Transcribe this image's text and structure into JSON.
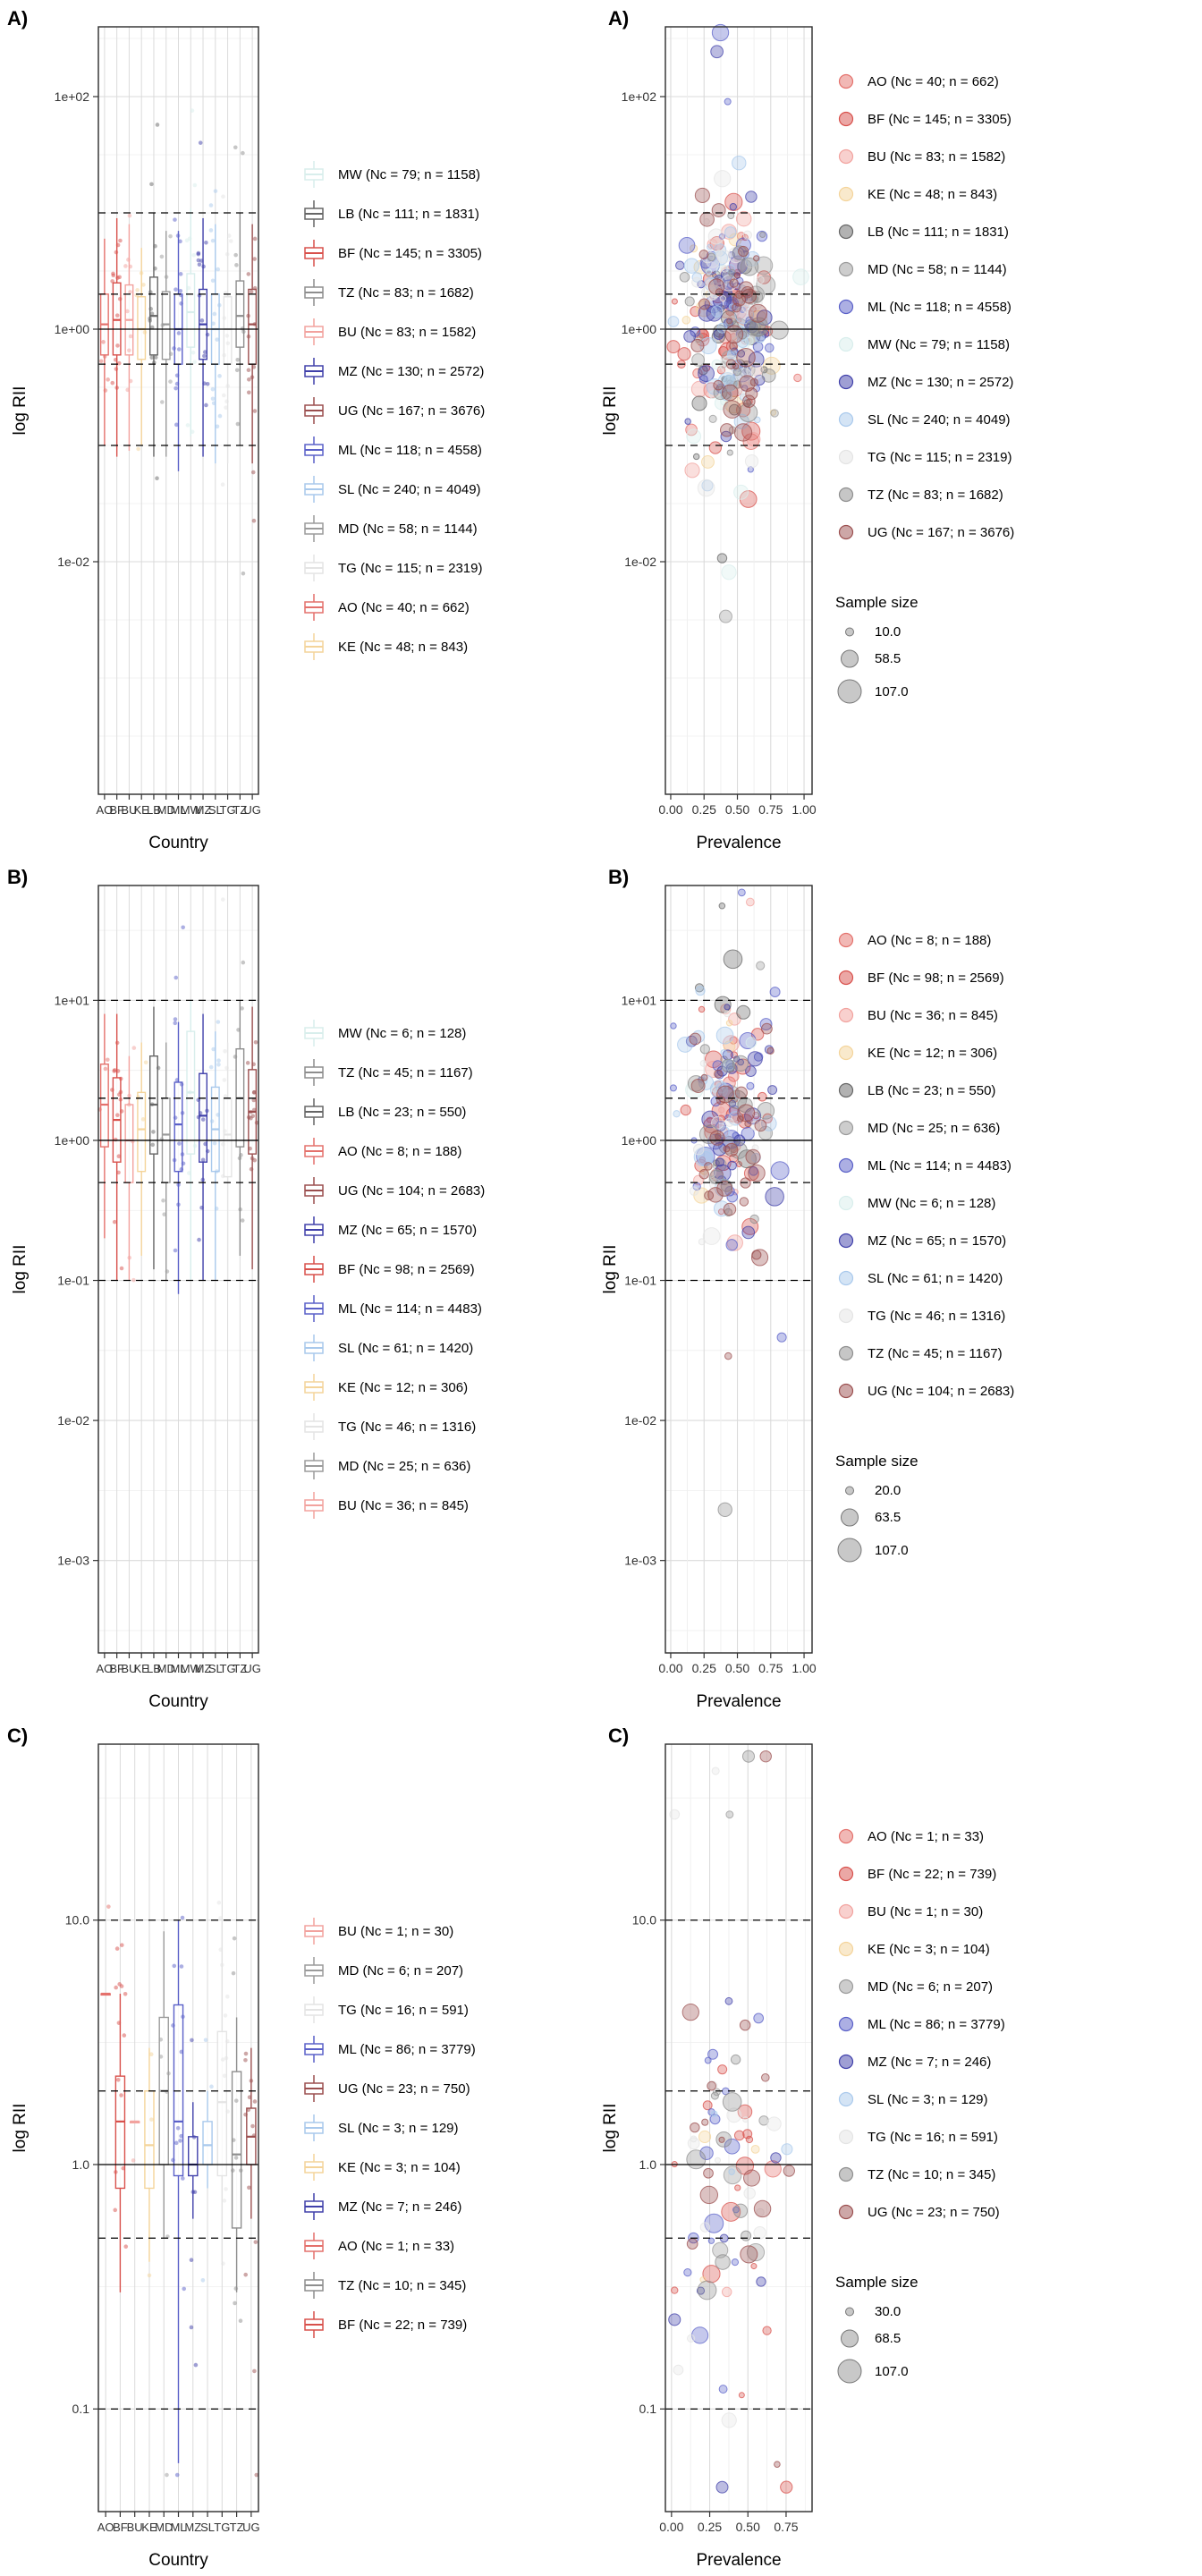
{
  "palette": {
    "AO": "#E4716C",
    "BF": "#D8504B",
    "BU": "#F2A29E",
    "KE": "#F4D49A",
    "LB": "#666666",
    "MD": "#9B9B9B",
    "ML": "#5A60C8",
    "MW": "#D8EEEC",
    "MZ": "#4040AA",
    "SL": "#A9C9EC",
    "TG": "#E4E4E4",
    "TZ": "#8E8E8E",
    "UG": "#9B4F4F"
  },
  "chart_data": [
    {
      "label": "A)",
      "type": "boxplot",
      "ylabel": "log RII",
      "xlabel": "Country",
      "ylim": [
        -4.0,
        2.6
      ],
      "seed": 11,
      "yticks": [
        {
          "v": 2,
          "label": "1e+02"
        },
        {
          "v": 0,
          "label": "1e+00"
        },
        {
          "v": -2,
          "label": "1e-02"
        }
      ],
      "ref": {
        "solid": [
          0
        ],
        "dashed": [
          1,
          0.30103,
          -0.30103,
          -1
        ]
      },
      "x_categories": [
        "AO",
        "BF",
        "BU",
        "KE",
        "LB",
        "MD",
        "ML",
        "MW",
        "MZ",
        "SL",
        "TG",
        "TZ",
        "UG"
      ],
      "legend": [
        {
          "code": "MW",
          "nc": 79,
          "label": "MW (Nc = 79; n = 1158)"
        },
        {
          "code": "LB",
          "nc": 111,
          "label": "LB (Nc = 111; n = 1831)"
        },
        {
          "code": "BF",
          "nc": 145,
          "label": "BF (Nc = 145; n = 3305)"
        },
        {
          "code": "TZ",
          "nc": 83,
          "label": "TZ (Nc = 83; n = 1682)"
        },
        {
          "code": "BU",
          "nc": 83,
          "label": "BU (Nc = 83; n = 1582)"
        },
        {
          "code": "MZ",
          "nc": 130,
          "label": "MZ (Nc = 130; n = 2572)"
        },
        {
          "code": "UG",
          "nc": 167,
          "label": "UG (Nc = 167; n = 3676)"
        },
        {
          "code": "ML",
          "nc": 118,
          "label": "ML (Nc = 118; n = 4558)"
        },
        {
          "code": "SL",
          "nc": 240,
          "label": "SL (Nc = 240; n = 4049)"
        },
        {
          "code": "MD",
          "nc": 58,
          "label": "MD (Nc = 58; n = 1144)"
        },
        {
          "code": "TG",
          "nc": 115,
          "label": "TG (Nc = 115; n = 2319)"
        },
        {
          "code": "AO",
          "nc": 40,
          "label": "AO (Nc = 40; n = 662)"
        },
        {
          "code": "KE",
          "nc": 48,
          "label": "KE (Nc = 48; n = 843)"
        }
      ],
      "boxes": {
        "AO": [
          0.1,
          0.6,
          1.1,
          2.0,
          6.0
        ],
        "BF": [
          0.08,
          0.6,
          1.2,
          2.5,
          9.0
        ],
        "BU": [
          0.09,
          0.6,
          1.2,
          2.4,
          8.0
        ],
        "KE": [
          0.1,
          0.55,
          1.0,
          1.9,
          5.0
        ],
        "LB": [
          0.08,
          0.6,
          1.3,
          2.8,
          10.0
        ],
        "MD": [
          0.08,
          0.55,
          1.1,
          2.1,
          7.0
        ],
        "ML": [
          0.06,
          0.5,
          1.0,
          2.0,
          7.0
        ],
        "MW": [
          0.12,
          0.7,
          1.4,
          3.0,
          11.0
        ],
        "MZ": [
          0.08,
          0.55,
          1.1,
          2.2,
          9.0
        ],
        "SL": [
          0.07,
          0.5,
          1.0,
          2.0,
          8.0
        ],
        "TG": [
          0.07,
          0.5,
          1.0,
          1.9,
          6.0
        ],
        "TZ": [
          0.1,
          0.7,
          1.3,
          2.6,
          10.0
        ],
        "UG": [
          0.07,
          0.5,
          1.1,
          2.2,
          8.0
        ]
      },
      "gen": {
        "jsd": 0.5,
        "jdiv": 8,
        "jmin": 4,
        "jmax": 16
      }
    },
    {
      "label": "A)",
      "type": "bubble",
      "ylabel": "log RII",
      "xlabel": "Prevalence",
      "ylim": [
        -4.0,
        2.6
      ],
      "xlim": [
        -0.04,
        1.06
      ],
      "seed": 22,
      "yticks": [
        {
          "v": 2,
          "label": "1e+02"
        },
        {
          "v": 0,
          "label": "1e+00"
        },
        {
          "v": -2,
          "label": "1e-02"
        }
      ],
      "xticks": [
        {
          "v": 0,
          "label": "0.00"
        },
        {
          "v": 0.25,
          "label": "0.25"
        },
        {
          "v": 0.5,
          "label": "0.50"
        },
        {
          "v": 0.75,
          "label": "0.75"
        },
        {
          "v": 1,
          "label": "1.00"
        }
      ],
      "ref": {
        "solid": [
          0
        ],
        "dashed": [
          1,
          0.30103,
          -0.30103,
          -1
        ]
      },
      "legend": [
        {
          "code": "AO",
          "nc": 40,
          "label": "AO (Nc = 40; n = 662)"
        },
        {
          "code": "BF",
          "nc": 145,
          "label": "BF (Nc = 145; n = 3305)"
        },
        {
          "code": "BU",
          "nc": 83,
          "label": "BU (Nc = 83; n = 1582)"
        },
        {
          "code": "KE",
          "nc": 48,
          "label": "KE (Nc = 48; n = 843)"
        },
        {
          "code": "LB",
          "nc": 111,
          "label": "LB (Nc = 111; n = 1831)"
        },
        {
          "code": "MD",
          "nc": 58,
          "label": "MD (Nc = 58; n = 1144)"
        },
        {
          "code": "ML",
          "nc": 118,
          "label": "ML (Nc = 118; n = 4558)"
        },
        {
          "code": "MW",
          "nc": 79,
          "label": "MW (Nc = 79; n = 1158)"
        },
        {
          "code": "MZ",
          "nc": 130,
          "label": "MZ (Nc = 130; n = 2572)"
        },
        {
          "code": "SL",
          "nc": 240,
          "label": "SL (Nc = 240; n = 4049)"
        },
        {
          "code": "TG",
          "nc": 115,
          "label": "TG (Nc = 115; n = 2319)"
        },
        {
          "code": "TZ",
          "nc": 83,
          "label": "TZ (Nc = 83; n = 1682)"
        },
        {
          "code": "UG",
          "nc": 167,
          "label": "UG (Nc = 167; n = 3676)"
        }
      ],
      "size_legend": {
        "title": "Sample size",
        "values": [
          "10.0",
          "58.5",
          "107.0"
        ]
      },
      "gen": {
        "div": 4,
        "cap": 34,
        "nmin": 5,
        "xm": 0.45,
        "xs": 0.16,
        "ym": 0.05,
        "ys": 0.5
      }
    },
    {
      "label": "B)",
      "type": "boxplot",
      "ylabel": "log RII",
      "xlabel": "Country",
      "ylim": [
        -3.66,
        1.82
      ],
      "seed": 33,
      "yticks": [
        {
          "v": 1,
          "label": "1e+01"
        },
        {
          "v": 0,
          "label": "1e+00"
        },
        {
          "v": -1,
          "label": "1e-01"
        },
        {
          "v": -2,
          "label": "1e-02"
        },
        {
          "v": -3,
          "label": "1e-03"
        }
      ],
      "ref": {
        "solid": [
          0
        ],
        "dashed": [
          1,
          0.30103,
          -0.30103,
          -1
        ]
      },
      "x_categories": [
        "AO",
        "BF",
        "BU",
        "KE",
        "LB",
        "MD",
        "ML",
        "MW",
        "MZ",
        "SL",
        "TG",
        "TZ",
        "UG"
      ],
      "legend": [
        {
          "code": "MW",
          "nc": 6,
          "label": "MW (Nc = 6; n = 128)"
        },
        {
          "code": "TZ",
          "nc": 45,
          "label": "TZ (Nc = 45; n = 1167)"
        },
        {
          "code": "LB",
          "nc": 23,
          "label": "LB (Nc = 23; n = 550)"
        },
        {
          "code": "AO",
          "nc": 8,
          "label": "AO (Nc = 8; n = 188)"
        },
        {
          "code": "UG",
          "nc": 104,
          "label": "UG (Nc = 104; n = 2683)"
        },
        {
          "code": "MZ",
          "nc": 65,
          "label": "MZ (Nc = 65; n = 1570)"
        },
        {
          "code": "BF",
          "nc": 98,
          "label": "BF (Nc = 98; n = 2569)"
        },
        {
          "code": "ML",
          "nc": 114,
          "label": "ML (Nc = 114; n = 4483)"
        },
        {
          "code": "SL",
          "nc": 61,
          "label": "SL (Nc = 61; n = 1420)"
        },
        {
          "code": "KE",
          "nc": 12,
          "label": "KE (Nc = 12; n = 306)"
        },
        {
          "code": "TG",
          "nc": 46,
          "label": "TG (Nc = 46; n = 1316)"
        },
        {
          "code": "MD",
          "nc": 25,
          "label": "MD (Nc = 25; n = 636)"
        },
        {
          "code": "BU",
          "nc": 36,
          "label": "BU (Nc = 36; n = 845)"
        }
      ],
      "boxes": {
        "AO": [
          0.2,
          0.9,
          1.8,
          3.5,
          8.0
        ],
        "BF": [
          0.1,
          0.7,
          1.4,
          2.8,
          8.0
        ],
        "BU": [
          0.1,
          0.5,
          1.0,
          1.8,
          4.0
        ],
        "KE": [
          0.15,
          0.6,
          1.2,
          2.2,
          5.0
        ],
        "LB": [
          0.12,
          0.8,
          1.8,
          4.0,
          9.0
        ],
        "MD": [
          0.1,
          0.5,
          1.1,
          2.0,
          5.0
        ],
        "ML": [
          0.08,
          0.6,
          1.3,
          2.6,
          7.0
        ],
        "MW": [
          0.1,
          0.8,
          2.2,
          6.0,
          10.0
        ],
        "MZ": [
          0.1,
          0.7,
          1.5,
          3.0,
          8.0
        ],
        "SL": [
          0.1,
          0.6,
          1.2,
          2.4,
          6.0
        ],
        "TG": [
          0.1,
          0.55,
          1.1,
          2.0,
          5.0
        ],
        "TZ": [
          0.15,
          0.9,
          2.0,
          4.5,
          10.0
        ],
        "UG": [
          0.12,
          0.8,
          1.6,
          3.2,
          9.0
        ]
      },
      "gen": {
        "jsd": 0.48,
        "jdiv": 6,
        "jmin": 3,
        "jmax": 16
      }
    },
    {
      "label": "B)",
      "type": "bubble",
      "ylabel": "log RII",
      "xlabel": "Prevalence",
      "ylim": [
        -3.66,
        1.82
      ],
      "xlim": [
        -0.04,
        1.06
      ],
      "seed": 44,
      "yticks": [
        {
          "v": 1,
          "label": "1e+01"
        },
        {
          "v": 0,
          "label": "1e+00"
        },
        {
          "v": -1,
          "label": "1e-01"
        },
        {
          "v": -2,
          "label": "1e-02"
        },
        {
          "v": -3,
          "label": "1e-03"
        }
      ],
      "xticks": [
        {
          "v": 0,
          "label": "0.00"
        },
        {
          "v": 0.25,
          "label": "0.25"
        },
        {
          "v": 0.5,
          "label": "0.50"
        },
        {
          "v": 0.75,
          "label": "0.75"
        },
        {
          "v": 1,
          "label": "1.00"
        }
      ],
      "ref": {
        "solid": [
          0
        ],
        "dashed": [
          1,
          0.30103,
          -0.30103,
          -1
        ]
      },
      "legend": [
        {
          "code": "AO",
          "nc": 8,
          "label": "AO (Nc = 8; n = 188)"
        },
        {
          "code": "BF",
          "nc": 98,
          "label": "BF (Nc = 98; n = 2569)"
        },
        {
          "code": "BU",
          "nc": 36,
          "label": "BU (Nc = 36; n = 845)"
        },
        {
          "code": "KE",
          "nc": 12,
          "label": "KE (Nc = 12; n = 306)"
        },
        {
          "code": "LB",
          "nc": 23,
          "label": "LB (Nc = 23; n = 550)"
        },
        {
          "code": "MD",
          "nc": 25,
          "label": "MD (Nc = 25; n = 636)"
        },
        {
          "code": "ML",
          "nc": 114,
          "label": "ML (Nc = 114; n = 4483)"
        },
        {
          "code": "MW",
          "nc": 6,
          "label": "MW (Nc = 6; n = 128)"
        },
        {
          "code": "MZ",
          "nc": 65,
          "label": "MZ (Nc = 65; n = 1570)"
        },
        {
          "code": "SL",
          "nc": 61,
          "label": "SL (Nc = 61; n = 1420)"
        },
        {
          "code": "TG",
          "nc": 46,
          "label": "TG (Nc = 46; n = 1316)"
        },
        {
          "code": "TZ",
          "nc": 45,
          "label": "TZ (Nc = 45; n = 1167)"
        },
        {
          "code": "UG",
          "nc": 104,
          "label": "UG (Nc = 104; n = 2683)"
        }
      ],
      "size_legend": {
        "title": "Sample size",
        "values": [
          "20.0",
          "63.5",
          "107.0"
        ]
      },
      "gen": {
        "div": 3,
        "cap": 30,
        "nmin": 3,
        "xm": 0.42,
        "xs": 0.16,
        "ym": 0.12,
        "ys": 0.48
      }
    },
    {
      "label": "C)",
      "type": "boxplot",
      "ylabel": "log RII",
      "xlabel": "Country",
      "ylim": [
        -1.42,
        1.72
      ],
      "seed": 55,
      "yticks": [
        {
          "v": 1,
          "label": "10.0"
        },
        {
          "v": 0,
          "label": "1.0"
        },
        {
          "v": -1,
          "label": "0.1"
        }
      ],
      "ref": {
        "solid": [
          0
        ],
        "dashed": [
          1,
          0.30103,
          -0.30103,
          -1
        ]
      },
      "x_categories": [
        "AO",
        "BF",
        "BU",
        "KE",
        "MD",
        "ML",
        "MZ",
        "SL",
        "TG",
        "TZ",
        "UG"
      ],
      "legend": [
        {
          "code": "BU",
          "nc": 1,
          "label": "BU (Nc = 1; n = 30)"
        },
        {
          "code": "MD",
          "nc": 6,
          "label": "MD (Nc = 6; n = 207)"
        },
        {
          "code": "TG",
          "nc": 16,
          "label": "TG (Nc = 16; n = 591)"
        },
        {
          "code": "ML",
          "nc": 86,
          "label": "ML (Nc = 86; n = 3779)"
        },
        {
          "code": "UG",
          "nc": 23,
          "label": "UG (Nc = 23; n = 750)"
        },
        {
          "code": "SL",
          "nc": 3,
          "label": "SL (Nc = 3; n = 129)"
        },
        {
          "code": "KE",
          "nc": 3,
          "label": "KE (Nc = 3; n = 104)"
        },
        {
          "code": "MZ",
          "nc": 7,
          "label": "MZ (Nc = 7; n = 246)"
        },
        {
          "code": "AO",
          "nc": 1,
          "label": "AO (Nc = 1; n = 33)"
        },
        {
          "code": "TZ",
          "nc": 10,
          "label": "TZ (Nc = 10; n = 345)"
        },
        {
          "code": "BF",
          "nc": 22,
          "label": "BF (Nc = 22; n = 739)"
        }
      ],
      "boxes": {
        "AO": [
          5.0,
          5.0,
          5.0,
          5.0,
          5.0
        ],
        "BF": [
          0.3,
          0.8,
          1.5,
          2.3,
          5.0
        ],
        "BU": [
          1.5,
          1.5,
          1.5,
          1.5,
          1.5
        ],
        "KE": [
          0.4,
          0.8,
          1.2,
          2.0,
          3.0
        ],
        "MD": [
          0.5,
          1.0,
          2.0,
          4.0,
          9.0
        ],
        "ML": [
          0.06,
          0.9,
          1.5,
          4.5,
          10.0
        ],
        "MZ": [
          0.6,
          0.9,
          1.0,
          1.3,
          1.8
        ],
        "SL": [
          0.8,
          1.0,
          1.2,
          1.5,
          2.0
        ],
        "TG": [
          0.4,
          0.9,
          1.8,
          3.5,
          10.0
        ],
        "TZ": [
          0.3,
          0.55,
          1.1,
          2.4,
          4.0
        ],
        "UG": [
          0.6,
          1.0,
          1.3,
          1.7,
          3.0
        ]
      },
      "gen": {
        "jsd": 0.4,
        "jdiv": 1,
        "jmin": 1,
        "jmax": 14
      }
    },
    {
      "label": "C)",
      "type": "bubble",
      "ylabel": "log RII",
      "xlabel": "Prevalence",
      "ylim": [
        -1.42,
        1.72
      ],
      "xlim": [
        -0.04,
        0.92
      ],
      "seed": 66,
      "yticks": [
        {
          "v": 1,
          "label": "10.0"
        },
        {
          "v": 0,
          "label": "1.0"
        },
        {
          "v": -1,
          "label": "0.1"
        }
      ],
      "xticks": [
        {
          "v": 0,
          "label": "0.00"
        },
        {
          "v": 0.25,
          "label": "0.25"
        },
        {
          "v": 0.5,
          "label": "0.50"
        },
        {
          "v": 0.75,
          "label": "0.75"
        }
      ],
      "ref": {
        "solid": [
          0
        ],
        "dashed": [
          1,
          0.30103,
          -0.30103,
          -1
        ]
      },
      "legend": [
        {
          "code": "AO",
          "nc": 1,
          "label": "AO (Nc = 1; n = 33)"
        },
        {
          "code": "BF",
          "nc": 22,
          "label": "BF (Nc = 22; n = 739)"
        },
        {
          "code": "BU",
          "nc": 1,
          "label": "BU (Nc = 1; n = 30)"
        },
        {
          "code": "KE",
          "nc": 3,
          "label": "KE (Nc = 3; n = 104)"
        },
        {
          "code": "MD",
          "nc": 6,
          "label": "MD (Nc = 6; n = 207)"
        },
        {
          "code": "ML",
          "nc": 86,
          "label": "ML (Nc = 86; n = 3779)"
        },
        {
          "code": "MZ",
          "nc": 7,
          "label": "MZ (Nc = 7; n = 246)"
        },
        {
          "code": "SL",
          "nc": 3,
          "label": "SL (Nc = 3; n = 129)"
        },
        {
          "code": "TG",
          "nc": 16,
          "label": "TG (Nc = 16; n = 591)"
        },
        {
          "code": "TZ",
          "nc": 10,
          "label": "TZ (Nc = 10; n = 345)"
        },
        {
          "code": "UG",
          "nc": 23,
          "label": "UG (Nc = 23; n = 750)"
        }
      ],
      "size_legend": {
        "title": "Sample size",
        "values": [
          "30.0",
          "68.5",
          "107.0"
        ]
      },
      "gen": {
        "div": 1,
        "cap": 16,
        "nmin": 1,
        "xm": 0.33,
        "xs": 0.17,
        "ym": 0.05,
        "ys": 0.38
      }
    }
  ]
}
